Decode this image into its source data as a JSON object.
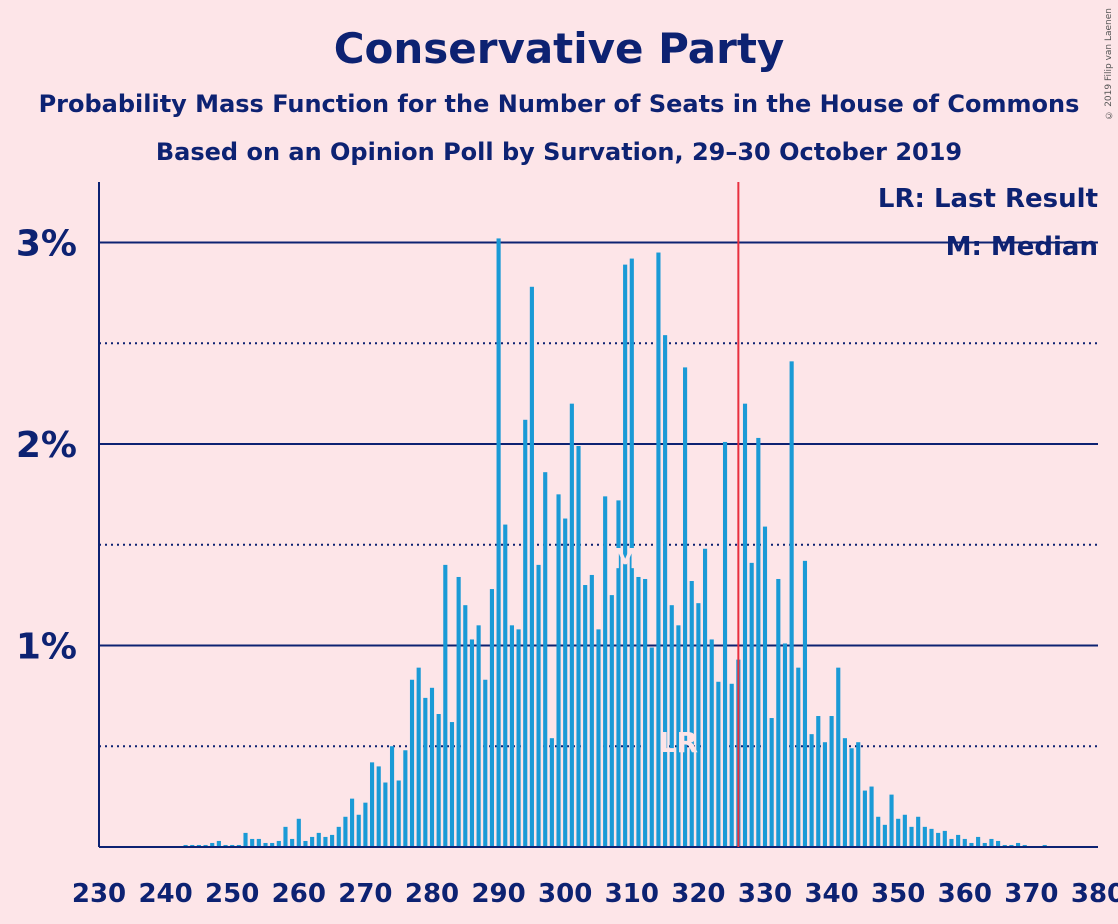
{
  "chart_data": {
    "type": "bar",
    "title": "Conservative Party",
    "subtitle": "Probability Mass Function for the Number of Seats in the House of Commons",
    "subtitle2": "Based on an Opinion Poll by Survation, 29–30 October 2019",
    "copyright": "© 2019 Filip van Laenen",
    "legend": {
      "last_result": "LR: Last Result",
      "median": "M: Median",
      "placement": "top-right"
    },
    "xlim": [
      230,
      380
    ],
    "ylim": [
      0,
      0.033
    ],
    "x_ticks": [
      230,
      240,
      250,
      260,
      270,
      280,
      290,
      300,
      310,
      320,
      330,
      340,
      350,
      360,
      370,
      380
    ],
    "y_ticks": [
      {
        "value": 0.01,
        "label": "1%"
      },
      {
        "value": 0.02,
        "label": "2%"
      },
      {
        "value": 0.03,
        "label": "3%"
      }
    ],
    "dotted_gridlines": [
      0.005,
      0.015,
      0.025
    ],
    "last_result_seat": 317,
    "median_seat": 309,
    "majority_line_seat": 326,
    "bar_color": "#1a9ad6",
    "line_color": "#e8303f",
    "x": [
      230,
      231,
      232,
      233,
      234,
      235,
      236,
      237,
      238,
      239,
      240,
      241,
      242,
      243,
      244,
      245,
      246,
      247,
      248,
      249,
      250,
      251,
      252,
      253,
      254,
      255,
      256,
      257,
      258,
      259,
      260,
      261,
      262,
      263,
      264,
      265,
      266,
      267,
      268,
      269,
      270,
      271,
      272,
      273,
      274,
      275,
      276,
      277,
      278,
      279,
      280,
      281,
      282,
      283,
      284,
      285,
      286,
      287,
      288,
      289,
      290,
      291,
      292,
      293,
      294,
      295,
      296,
      297,
      298,
      299,
      300,
      301,
      302,
      303,
      304,
      305,
      306,
      307,
      308,
      309,
      310,
      311,
      312,
      313,
      314,
      315,
      316,
      317,
      318,
      319,
      320,
      321,
      322,
      323,
      324,
      325,
      326,
      327,
      328,
      329,
      330,
      331,
      332,
      333,
      334,
      335,
      336,
      337,
      338,
      339,
      340,
      341,
      342,
      343,
      344,
      345,
      346,
      347,
      348,
      349,
      350,
      351,
      352,
      353,
      354,
      355,
      356,
      357,
      358,
      359,
      360,
      361,
      362,
      363,
      364,
      365,
      366,
      367,
      368,
      369,
      370,
      371,
      372,
      373,
      374,
      375,
      376,
      377,
      378,
      379,
      380
    ],
    "values": [
      0,
      0,
      0,
      0,
      0,
      0,
      0,
      0,
      0,
      0,
      0,
      0,
      0,
      0.0001,
      0.0001,
      0.0001,
      0.0001,
      0.0002,
      0.0003,
      0.0001,
      0.0001,
      0.0001,
      0.0007,
      0.0004,
      0.0004,
      0.0002,
      0.0002,
      0.0003,
      0.001,
      0.0004,
      0.0014,
      0.0003,
      0.0005,
      0.0007,
      0.0005,
      0.0006,
      0.001,
      0.0015,
      0.0024,
      0.0016,
      0.0022,
      0.0042,
      0.004,
      0.0032,
      0.005,
      0.0033,
      0.0048,
      0.0083,
      0.0089,
      0.0074,
      0.0079,
      0.0066,
      0.014,
      0.0062,
      0.0134,
      0.012,
      0.0103,
      0.011,
      0.0083,
      0.0128,
      0.0302,
      0.016,
      0.011,
      0.0108,
      0.0212,
      0.0278,
      0.014,
      0.0186,
      0.0054,
      0.0175,
      0.0163,
      0.022,
      0.0199,
      0.013,
      0.0135,
      0.0108,
      0.0174,
      0.0125,
      0.0172,
      0.0289,
      0.0292,
      0.0134,
      0.0133,
      0.0099,
      0.0295,
      0.0254,
      0.012,
      0.011,
      0.0238,
      0.0132,
      0.0121,
      0.0148,
      0.0103,
      0.0082,
      0.0201,
      0.0081,
      0.0093,
      0.022,
      0.0141,
      0.0203,
      0.0159,
      0.0064,
      0.0133,
      0.0101,
      0.0241,
      0.0089,
      0.0142,
      0.0056,
      0.0065,
      0.0052,
      0.0065,
      0.0089,
      0.0054,
      0.0049,
      0.0052,
      0.0028,
      0.003,
      0.0015,
      0.0011,
      0.0026,
      0.0014,
      0.0016,
      0.001,
      0.0015,
      0.001,
      0.0009,
      0.0007,
      0.0008,
      0.0004,
      0.0006,
      0.0004,
      0.0002,
      0.0005,
      0.0002,
      0.0004,
      0.0003,
      0.0001,
      0.0001,
      0.0002,
      0.0001,
      0,
      0,
      0.0001,
      0,
      0,
      0,
      0,
      0,
      0,
      0,
      0
    ]
  },
  "labels": {
    "lr_marker": "LR",
    "median_marker": "M"
  }
}
